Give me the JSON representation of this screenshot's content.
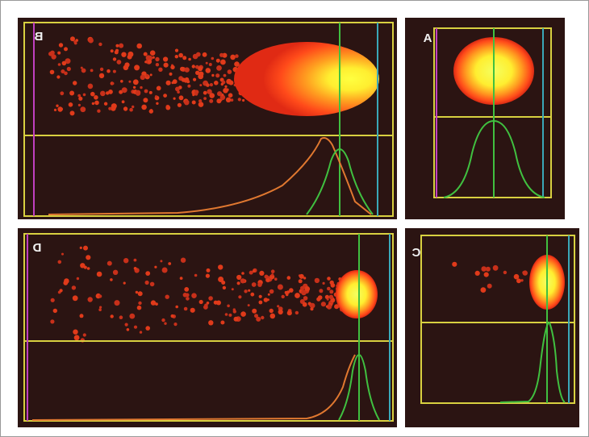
{
  "panels": [
    {
      "label": "B"
    },
    {
      "label": "A"
    },
    {
      "label": "D"
    },
    {
      "label": "C"
    }
  ]
}
